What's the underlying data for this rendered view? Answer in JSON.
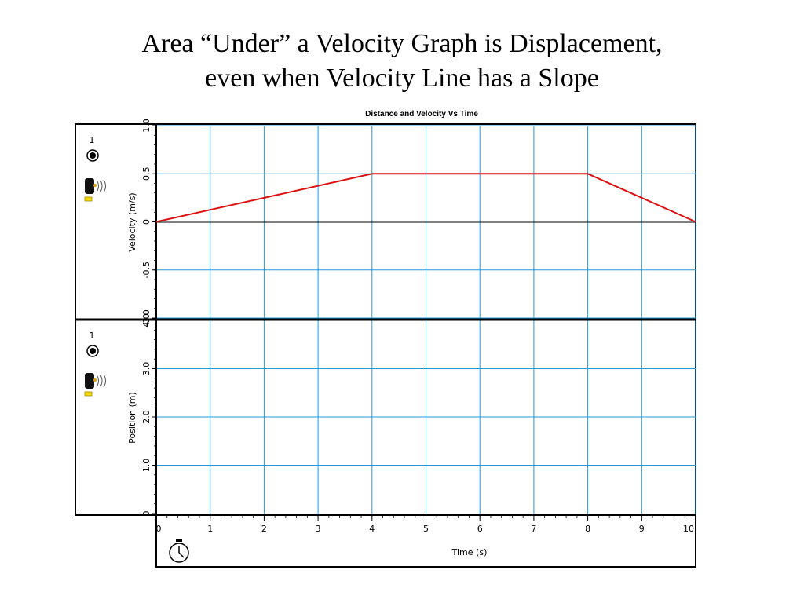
{
  "slide": {
    "title_line1": "Area “Under” a Velocity Graph is Displacement,",
    "title_line2": "even when Velocity Line has a Slope"
  },
  "chart_data": {
    "type": "line",
    "title": "Distance and Velocity Vs Time",
    "xlabel": "Time (s)",
    "xlim": [
      0,
      10
    ],
    "x_ticks": [
      "0",
      "1",
      "2",
      "3",
      "4",
      "5",
      "6",
      "7",
      "8",
      "9",
      "10"
    ],
    "grid": true,
    "panels": [
      {
        "name": "velocity",
        "ylabel": "Velocity (m/s)",
        "ylim": [
          -1.0,
          1.0
        ],
        "y_ticks": [
          "1.0",
          "0.5",
          "0",
          "-0.5",
          "-1.0"
        ],
        "sensor_label": "1",
        "series": [
          {
            "color": "#dd1111",
            "x": [
              0,
              4,
              8,
              10
            ],
            "y": [
              0,
              0.5,
              0.5,
              0
            ]
          }
        ]
      },
      {
        "name": "position",
        "ylabel": "Position (m)",
        "ylim": [
          0,
          4.0
        ],
        "y_ticks": [
          "4.0",
          "3.0",
          "2.0",
          "1.0",
          "0"
        ],
        "sensor_label": "1",
        "series": []
      }
    ],
    "colors": {
      "grid": "#2299dd",
      "line": "#dd1111",
      "zero_line": "#000000"
    }
  }
}
